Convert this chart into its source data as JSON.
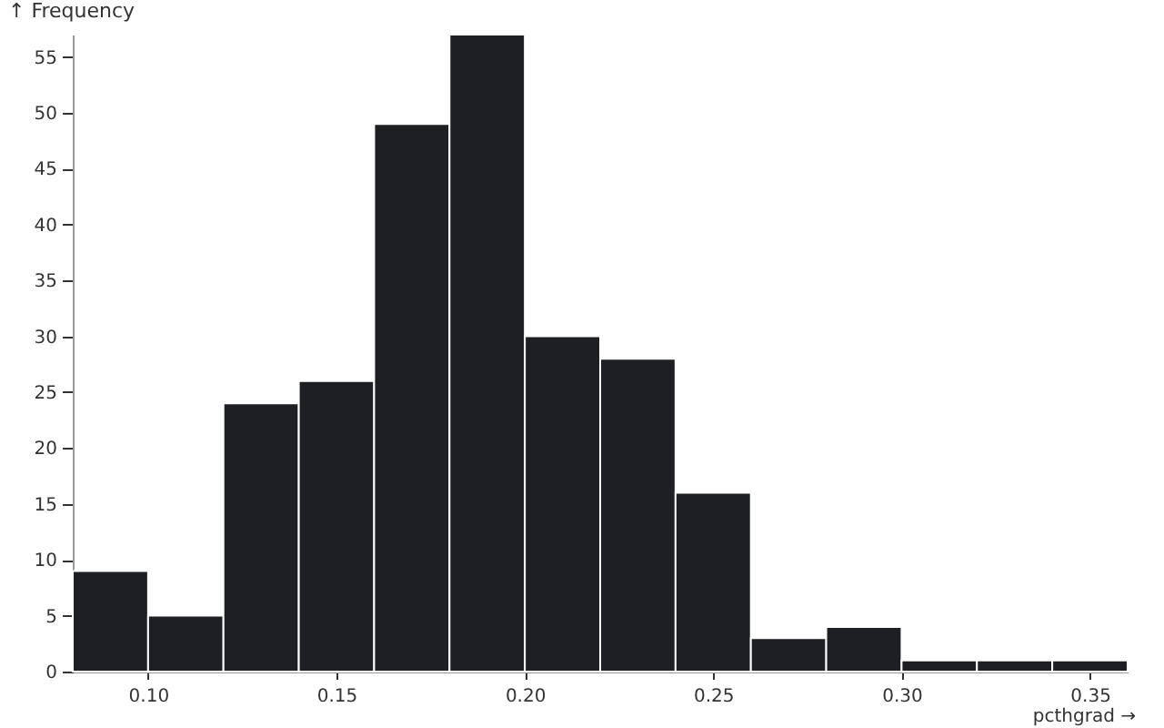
{
  "chart_data": {
    "type": "histogram",
    "xlabel": "pcthgrad →",
    "ylabel": "↑ Frequency",
    "bins": [
      0.08,
      0.1,
      0.12,
      0.14,
      0.16,
      0.18,
      0.2,
      0.22,
      0.24,
      0.26,
      0.28,
      0.3,
      0.32,
      0.34,
      0.36
    ],
    "values": [
      9,
      5,
      24,
      26,
      49,
      57,
      30,
      28,
      16,
      3,
      4,
      1,
      1,
      1
    ],
    "color": "#1d1f23",
    "xlim": [
      0.08,
      0.36
    ],
    "ylim": [
      0,
      57
    ],
    "xticks": [
      {
        "value": 0.1,
        "label": "0.10"
      },
      {
        "value": 0.15,
        "label": "0.15"
      },
      {
        "value": 0.2,
        "label": "0.20"
      },
      {
        "value": 0.25,
        "label": "0.25"
      },
      {
        "value": 0.3,
        "label": "0.30"
      },
      {
        "value": 0.35,
        "label": "0.35"
      }
    ],
    "yticks": [
      0,
      5,
      10,
      15,
      20,
      25,
      30,
      35,
      40,
      45,
      50,
      55
    ],
    "grid": false
  }
}
